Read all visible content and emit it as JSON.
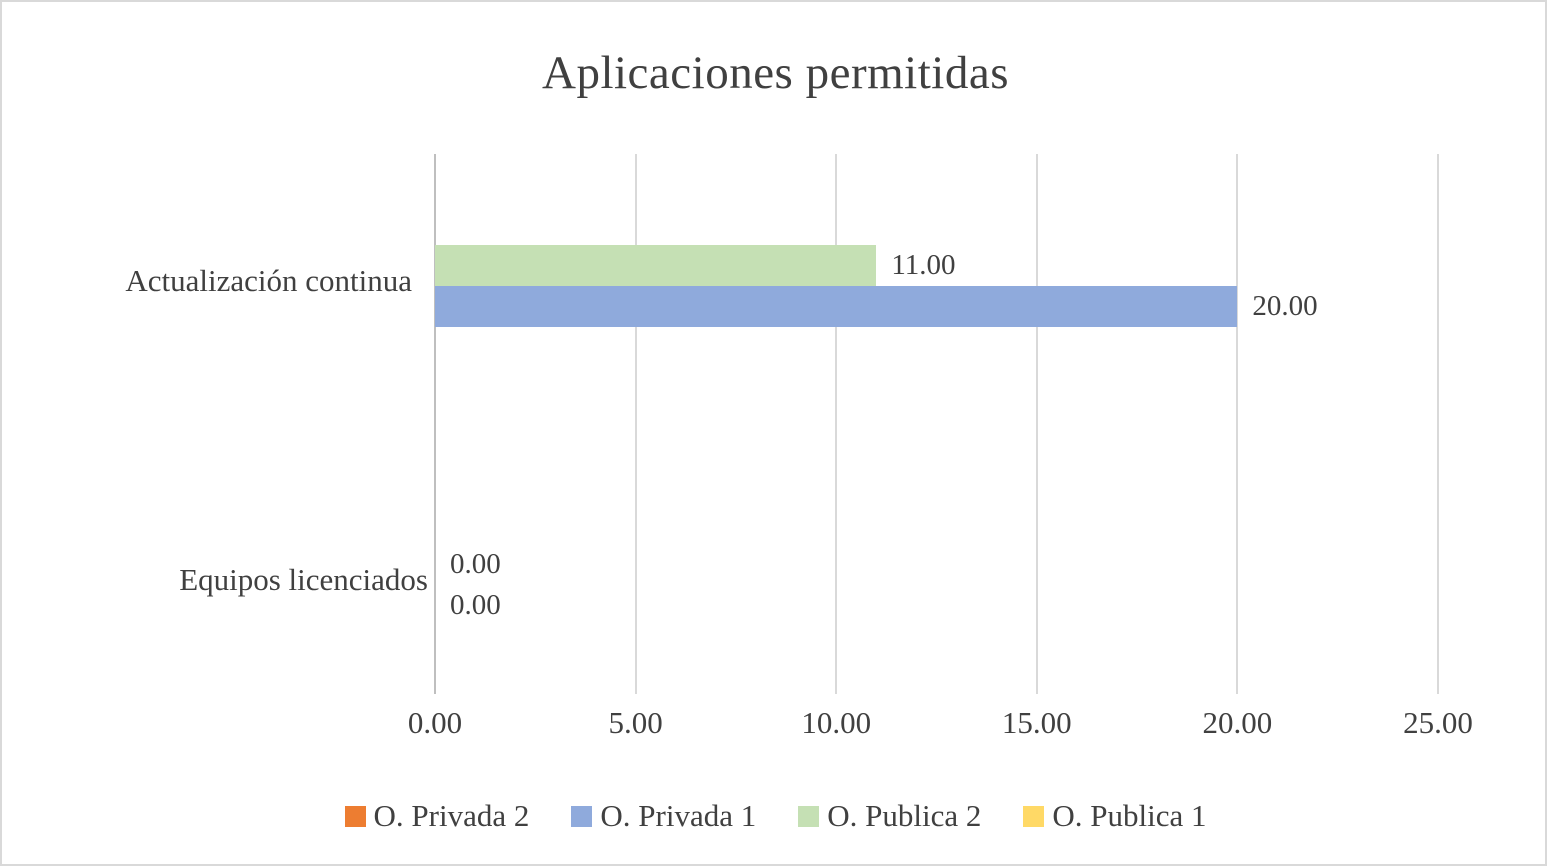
{
  "page": {
    "background": "#ffffff",
    "border_color": "#d9d9d9",
    "text_color": "#404040"
  },
  "chart_data": {
    "type": "bar",
    "orientation": "horizontal",
    "title": "Aplicaciones permitidas",
    "categories": [
      "Actualización continua",
      "Equipos licenciados"
    ],
    "series": [
      {
        "name": "O. Privada 2",
        "color": "#ED7D31",
        "values": [
          null,
          null
        ],
        "value_labels": [
          null,
          null
        ]
      },
      {
        "name": "O. Privada 1",
        "color": "#8FAADC",
        "values": [
          20,
          0
        ],
        "value_labels": [
          "20.00",
          "0.00"
        ]
      },
      {
        "name": "O. Publica 2",
        "color": "#C5E0B4",
        "values": [
          11,
          0
        ],
        "value_labels": [
          "11.00",
          "0.00"
        ]
      },
      {
        "name": "O. Publica 1",
        "color": "#FFD966",
        "values": [
          null,
          null
        ],
        "value_labels": [
          null,
          null
        ]
      }
    ],
    "xlabel": "",
    "ylabel": "",
    "xlim": [
      0,
      25
    ],
    "xtick_values": [
      0,
      5,
      10,
      15,
      20,
      25
    ],
    "xtick_labels": [
      "0.00",
      "5.00",
      "10.00",
      "15.00",
      "20.00",
      "25.00"
    ],
    "grid": "vertical",
    "gridline_color": "#D9D9D9",
    "axis_line_color": "#BFBFBF",
    "data_labels": true,
    "legend_position": "bottom"
  }
}
